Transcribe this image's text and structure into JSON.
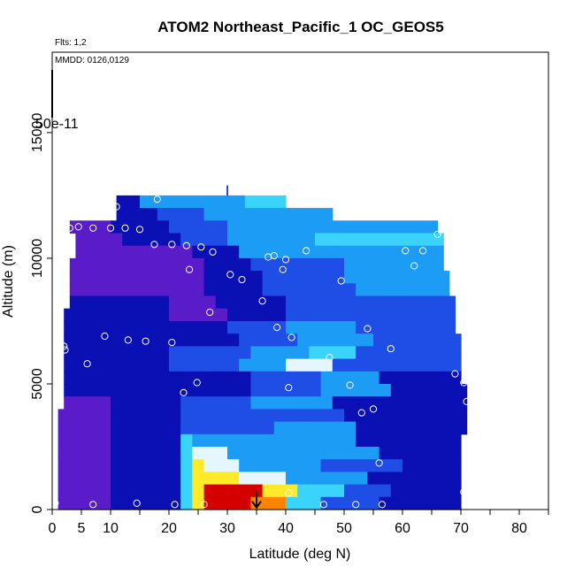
{
  "chart_data": {
    "type": "heatmap",
    "title": "ATOM2 Northeast_Pacific_1 OC_GEOS5",
    "annotations": {
      "flights": "Flts: 1,2",
      "dates": "MMDD: 0126,0129",
      "scale_label": "50e-11"
    },
    "xlabel": "Latitude (deg N)",
    "ylabel": "Altitude (m)",
    "xlim": [
      0,
      85
    ],
    "ylim": [
      0,
      18200
    ],
    "x_ticks": [
      0,
      5,
      10,
      20,
      30,
      40,
      50,
      60,
      70,
      80
    ],
    "x_minor_ticks": [
      15,
      25,
      35,
      45,
      55,
      65,
      75,
      85
    ],
    "y_ticks": [
      0,
      5000,
      10000,
      15000
    ],
    "grid": false,
    "colors": {
      "low": "#5a1cc8",
      "navy": "#0a10b4",
      "blue": "#1e4ee6",
      "sky": "#1c9cf4",
      "cyan": "#3ad4fa",
      "pale": "#e6f6ff",
      "yellow": "#ffea2a",
      "orange": "#ff8400",
      "red": "#d40000",
      "marker": "#ffffff",
      "arrow": "#000000"
    },
    "layers": [
      {
        "alt": [
          12000,
          12500
        ],
        "segments": [
          [
            11,
            15,
            "navy"
          ],
          [
            15,
            25,
            "sky"
          ],
          [
            25,
            33,
            "sky"
          ],
          [
            33,
            40,
            "cyan"
          ]
        ]
      },
      {
        "alt": [
          11500,
          12000
        ],
        "segments": [
          [
            11,
            18,
            "navy"
          ],
          [
            18,
            26,
            "blue"
          ],
          [
            26,
            34,
            "sky"
          ],
          [
            34,
            48,
            "sky"
          ]
        ]
      },
      {
        "alt": [
          11000,
          11500
        ],
        "segments": [
          [
            3,
            10,
            "low"
          ],
          [
            10,
            20,
            "navy"
          ],
          [
            20,
            30,
            "blue"
          ],
          [
            30,
            50,
            "sky"
          ],
          [
            50,
            66,
            "sky"
          ]
        ]
      },
      {
        "alt": [
          10500,
          11000
        ],
        "segments": [
          [
            4,
            12,
            "low"
          ],
          [
            12,
            22,
            "navy"
          ],
          [
            22,
            30,
            "blue"
          ],
          [
            30,
            45,
            "sky"
          ],
          [
            45,
            67,
            "cyan"
          ]
        ]
      },
      {
        "alt": [
          10000,
          10500
        ],
        "segments": [
          [
            4,
            14,
            "low"
          ],
          [
            14,
            24,
            "low"
          ],
          [
            24,
            32,
            "navy"
          ],
          [
            32,
            48,
            "sky"
          ],
          [
            48,
            67,
            "sky"
          ]
        ]
      },
      {
        "alt": [
          9500,
          10000
        ],
        "segments": [
          [
            3,
            14,
            "low"
          ],
          [
            14,
            26,
            "low"
          ],
          [
            26,
            34,
            "navy"
          ],
          [
            34,
            50,
            "blue"
          ],
          [
            50,
            67,
            "sky"
          ]
        ]
      },
      {
        "alt": [
          9000,
          9500
        ],
        "segments": [
          [
            3,
            16,
            "low"
          ],
          [
            16,
            26,
            "low"
          ],
          [
            26,
            36,
            "navy"
          ],
          [
            36,
            50,
            "blue"
          ],
          [
            50,
            68,
            "sky"
          ]
        ]
      },
      {
        "alt": [
          8500,
          9000
        ],
        "segments": [
          [
            3,
            18,
            "low"
          ],
          [
            18,
            26,
            "low"
          ],
          [
            26,
            36,
            "navy"
          ],
          [
            36,
            52,
            "blue"
          ],
          [
            52,
            68,
            "sky"
          ]
        ]
      },
      {
        "alt": [
          8000,
          8500
        ],
        "segments": [
          [
            3,
            20,
            "navy"
          ],
          [
            20,
            28,
            "low"
          ],
          [
            28,
            40,
            "navy"
          ],
          [
            40,
            55,
            "blue"
          ],
          [
            55,
            69,
            "blue"
          ]
        ]
      },
      {
        "alt": [
          7500,
          8000
        ],
        "segments": [
          [
            2,
            20,
            "navy"
          ],
          [
            20,
            30,
            "low"
          ],
          [
            30,
            40,
            "navy"
          ],
          [
            40,
            55,
            "blue"
          ],
          [
            55,
            69,
            "blue"
          ]
        ]
      },
      {
        "alt": [
          7000,
          7500
        ],
        "segments": [
          [
            2,
            20,
            "navy"
          ],
          [
            20,
            30,
            "navy"
          ],
          [
            30,
            40,
            "blue"
          ],
          [
            40,
            52,
            "sky"
          ],
          [
            52,
            69,
            "blue"
          ]
        ]
      },
      {
        "alt": [
          6500,
          7000
        ],
        "segments": [
          [
            2,
            20,
            "navy"
          ],
          [
            20,
            32,
            "navy"
          ],
          [
            32,
            42,
            "blue"
          ],
          [
            42,
            55,
            "sky"
          ],
          [
            55,
            70,
            "blue"
          ]
        ]
      },
      {
        "alt": [
          6000,
          6500
        ],
        "segments": [
          [
            2,
            20,
            "navy"
          ],
          [
            20,
            34,
            "blue"
          ],
          [
            34,
            44,
            "sky"
          ],
          [
            44,
            52,
            "cyan"
          ],
          [
            52,
            70,
            "blue"
          ]
        ]
      },
      {
        "alt": [
          5500,
          6000
        ],
        "segments": [
          [
            2,
            20,
            "navy"
          ],
          [
            20,
            32,
            "blue"
          ],
          [
            32,
            40,
            "sky"
          ],
          [
            40,
            48,
            "pale"
          ],
          [
            48,
            70,
            "blue"
          ]
        ]
      },
      {
        "alt": [
          5000,
          5500
        ],
        "segments": [
          [
            2,
            20,
            "navy"
          ],
          [
            20,
            34,
            "navy"
          ],
          [
            34,
            46,
            "blue"
          ],
          [
            46,
            56,
            "sky"
          ],
          [
            56,
            70,
            "navy"
          ]
        ]
      },
      {
        "alt": [
          4500,
          5000
        ],
        "segments": [
          [
            2,
            20,
            "navy"
          ],
          [
            20,
            34,
            "navy"
          ],
          [
            34,
            46,
            "blue"
          ],
          [
            46,
            58,
            "sky"
          ],
          [
            58,
            71,
            "navy"
          ]
        ]
      },
      {
        "alt": [
          4000,
          4500
        ],
        "segments": [
          [
            2,
            10,
            "low"
          ],
          [
            10,
            22,
            "navy"
          ],
          [
            22,
            34,
            "blue"
          ],
          [
            34,
            48,
            "sky"
          ],
          [
            48,
            71,
            "navy"
          ]
        ]
      },
      {
        "alt": [
          3500,
          4000
        ],
        "segments": [
          [
            1,
            10,
            "low"
          ],
          [
            10,
            22,
            "navy"
          ],
          [
            22,
            36,
            "blue"
          ],
          [
            36,
            50,
            "blue"
          ],
          [
            50,
            71,
            "navy"
          ]
        ]
      },
      {
        "alt": [
          3000,
          3500
        ],
        "segments": [
          [
            1,
            10,
            "low"
          ],
          [
            10,
            22,
            "navy"
          ],
          [
            22,
            38,
            "blue"
          ],
          [
            38,
            52,
            "sky"
          ],
          [
            52,
            71,
            "navy"
          ]
        ]
      },
      {
        "alt": [
          2500,
          3000
        ],
        "segments": [
          [
            1,
            10,
            "low"
          ],
          [
            10,
            22,
            "navy"
          ],
          [
            22,
            24,
            "cyan"
          ],
          [
            24,
            36,
            "sky"
          ],
          [
            36,
            52,
            "sky"
          ],
          [
            52,
            70,
            "navy"
          ]
        ]
      },
      {
        "alt": [
          2000,
          2500
        ],
        "segments": [
          [
            1,
            10,
            "low"
          ],
          [
            10,
            22,
            "navy"
          ],
          [
            22,
            24,
            "cyan"
          ],
          [
            24,
            30,
            "pale"
          ],
          [
            30,
            44,
            "sky"
          ],
          [
            44,
            56,
            "sky"
          ],
          [
            56,
            70,
            "navy"
          ]
        ]
      },
      {
        "alt": [
          1500,
          2000
        ],
        "segments": [
          [
            1,
            10,
            "low"
          ],
          [
            10,
            22,
            "navy"
          ],
          [
            22,
            24,
            "cyan"
          ],
          [
            24,
            26,
            "yellow"
          ],
          [
            26,
            32,
            "pale"
          ],
          [
            32,
            46,
            "sky"
          ],
          [
            46,
            60,
            "blue"
          ],
          [
            60,
            70,
            "navy"
          ]
        ]
      },
      {
        "alt": [
          1000,
          1500
        ],
        "segments": [
          [
            1,
            10,
            "low"
          ],
          [
            10,
            22,
            "navy"
          ],
          [
            22,
            24,
            "cyan"
          ],
          [
            24,
            26,
            "yellow"
          ],
          [
            26,
            32,
            "yellow"
          ],
          [
            32,
            40,
            "pale"
          ],
          [
            40,
            54,
            "sky"
          ],
          [
            54,
            70,
            "navy"
          ]
        ]
      },
      {
        "alt": [
          500,
          1000
        ],
        "segments": [
          [
            1,
            10,
            "low"
          ],
          [
            10,
            22,
            "navy"
          ],
          [
            22,
            24,
            "cyan"
          ],
          [
            24,
            26,
            "yellow"
          ],
          [
            26,
            36,
            "red"
          ],
          [
            36,
            42,
            "yellow"
          ],
          [
            42,
            50,
            "cyan"
          ],
          [
            50,
            58,
            "blue"
          ],
          [
            58,
            70,
            "navy"
          ]
        ]
      },
      {
        "alt": [
          0,
          500
        ],
        "segments": [
          [
            1,
            10,
            "low"
          ],
          [
            10,
            22,
            "navy"
          ],
          [
            22,
            24,
            "cyan"
          ],
          [
            24,
            26,
            "yellow"
          ],
          [
            26,
            34,
            "red"
          ],
          [
            34,
            40,
            "orange"
          ],
          [
            40,
            46,
            "cyan"
          ],
          [
            46,
            56,
            "blue"
          ],
          [
            56,
            70,
            "navy"
          ]
        ]
      }
    ],
    "flight_track": [
      {
        "x": 11,
        "y": 12050
      },
      {
        "x": 18,
        "y": 12350
      },
      {
        "x": 3,
        "y": 11200
      },
      {
        "x": 4.5,
        "y": 11250
      },
      {
        "x": 7,
        "y": 11200
      },
      {
        "x": 10,
        "y": 11200
      },
      {
        "x": 12.5,
        "y": 11200
      },
      {
        "x": 15,
        "y": 11150
      },
      {
        "x": 17.5,
        "y": 10550
      },
      {
        "x": 20.5,
        "y": 10550
      },
      {
        "x": 23,
        "y": 10500
      },
      {
        "x": 25.5,
        "y": 10450
      },
      {
        "x": 27.5,
        "y": 10250
      },
      {
        "x": 23.5,
        "y": 9550
      },
      {
        "x": 30.5,
        "y": 9350
      },
      {
        "x": 32.5,
        "y": 9150
      },
      {
        "x": 37,
        "y": 10050
      },
      {
        "x": 38,
        "y": 10100
      },
      {
        "x": 39.5,
        "y": 9550
      },
      {
        "x": 40,
        "y": 9950
      },
      {
        "x": 43.5,
        "y": 10300
      },
      {
        "x": 49.5,
        "y": 9100
      },
      {
        "x": 60.5,
        "y": 10300
      },
      {
        "x": 62,
        "y": 9700
      },
      {
        "x": 63.5,
        "y": 10300
      },
      {
        "x": 66,
        "y": 10950
      },
      {
        "x": 27,
        "y": 7850
      },
      {
        "x": 36,
        "y": 8300
      },
      {
        "x": 38.5,
        "y": 7250
      },
      {
        "x": 41,
        "y": 6850
      },
      {
        "x": 54,
        "y": 7200
      },
      {
        "x": 2,
        "y": 6500
      },
      {
        "x": 2.2,
        "y": 6350
      },
      {
        "x": 9,
        "y": 6900
      },
      {
        "x": 13,
        "y": 6750
      },
      {
        "x": 16,
        "y": 6700
      },
      {
        "x": 20.5,
        "y": 6650
      },
      {
        "x": 6,
        "y": 5800
      },
      {
        "x": 47.5,
        "y": 6050
      },
      {
        "x": 58,
        "y": 6400
      },
      {
        "x": 22.5,
        "y": 4650
      },
      {
        "x": 24.8,
        "y": 5050
      },
      {
        "x": 40.5,
        "y": 4850
      },
      {
        "x": 51,
        "y": 4950
      },
      {
        "x": 53,
        "y": 3850
      },
      {
        "x": 55,
        "y": 4000
      },
      {
        "x": 69,
        "y": 5400
      },
      {
        "x": 70.5,
        "y": 5050
      },
      {
        "x": 71,
        "y": 4300
      },
      {
        "x": 56,
        "y": 1850
      },
      {
        "x": 40.5,
        "y": 650
      },
      {
        "x": 70.5,
        "y": 700
      },
      {
        "x": 0.5,
        "y": 250
      },
      {
        "x": 7,
        "y": 200
      },
      {
        "x": 14.5,
        "y": 250
      },
      {
        "x": 21,
        "y": 200
      },
      {
        "x": 26,
        "y": 200
      },
      {
        "x": 46.5,
        "y": 200
      },
      {
        "x": 52,
        "y": 200
      },
      {
        "x": 56.5,
        "y": 200
      }
    ],
    "arrow": {
      "x": 35,
      "y_from": 700,
      "y_to": 80
    }
  }
}
